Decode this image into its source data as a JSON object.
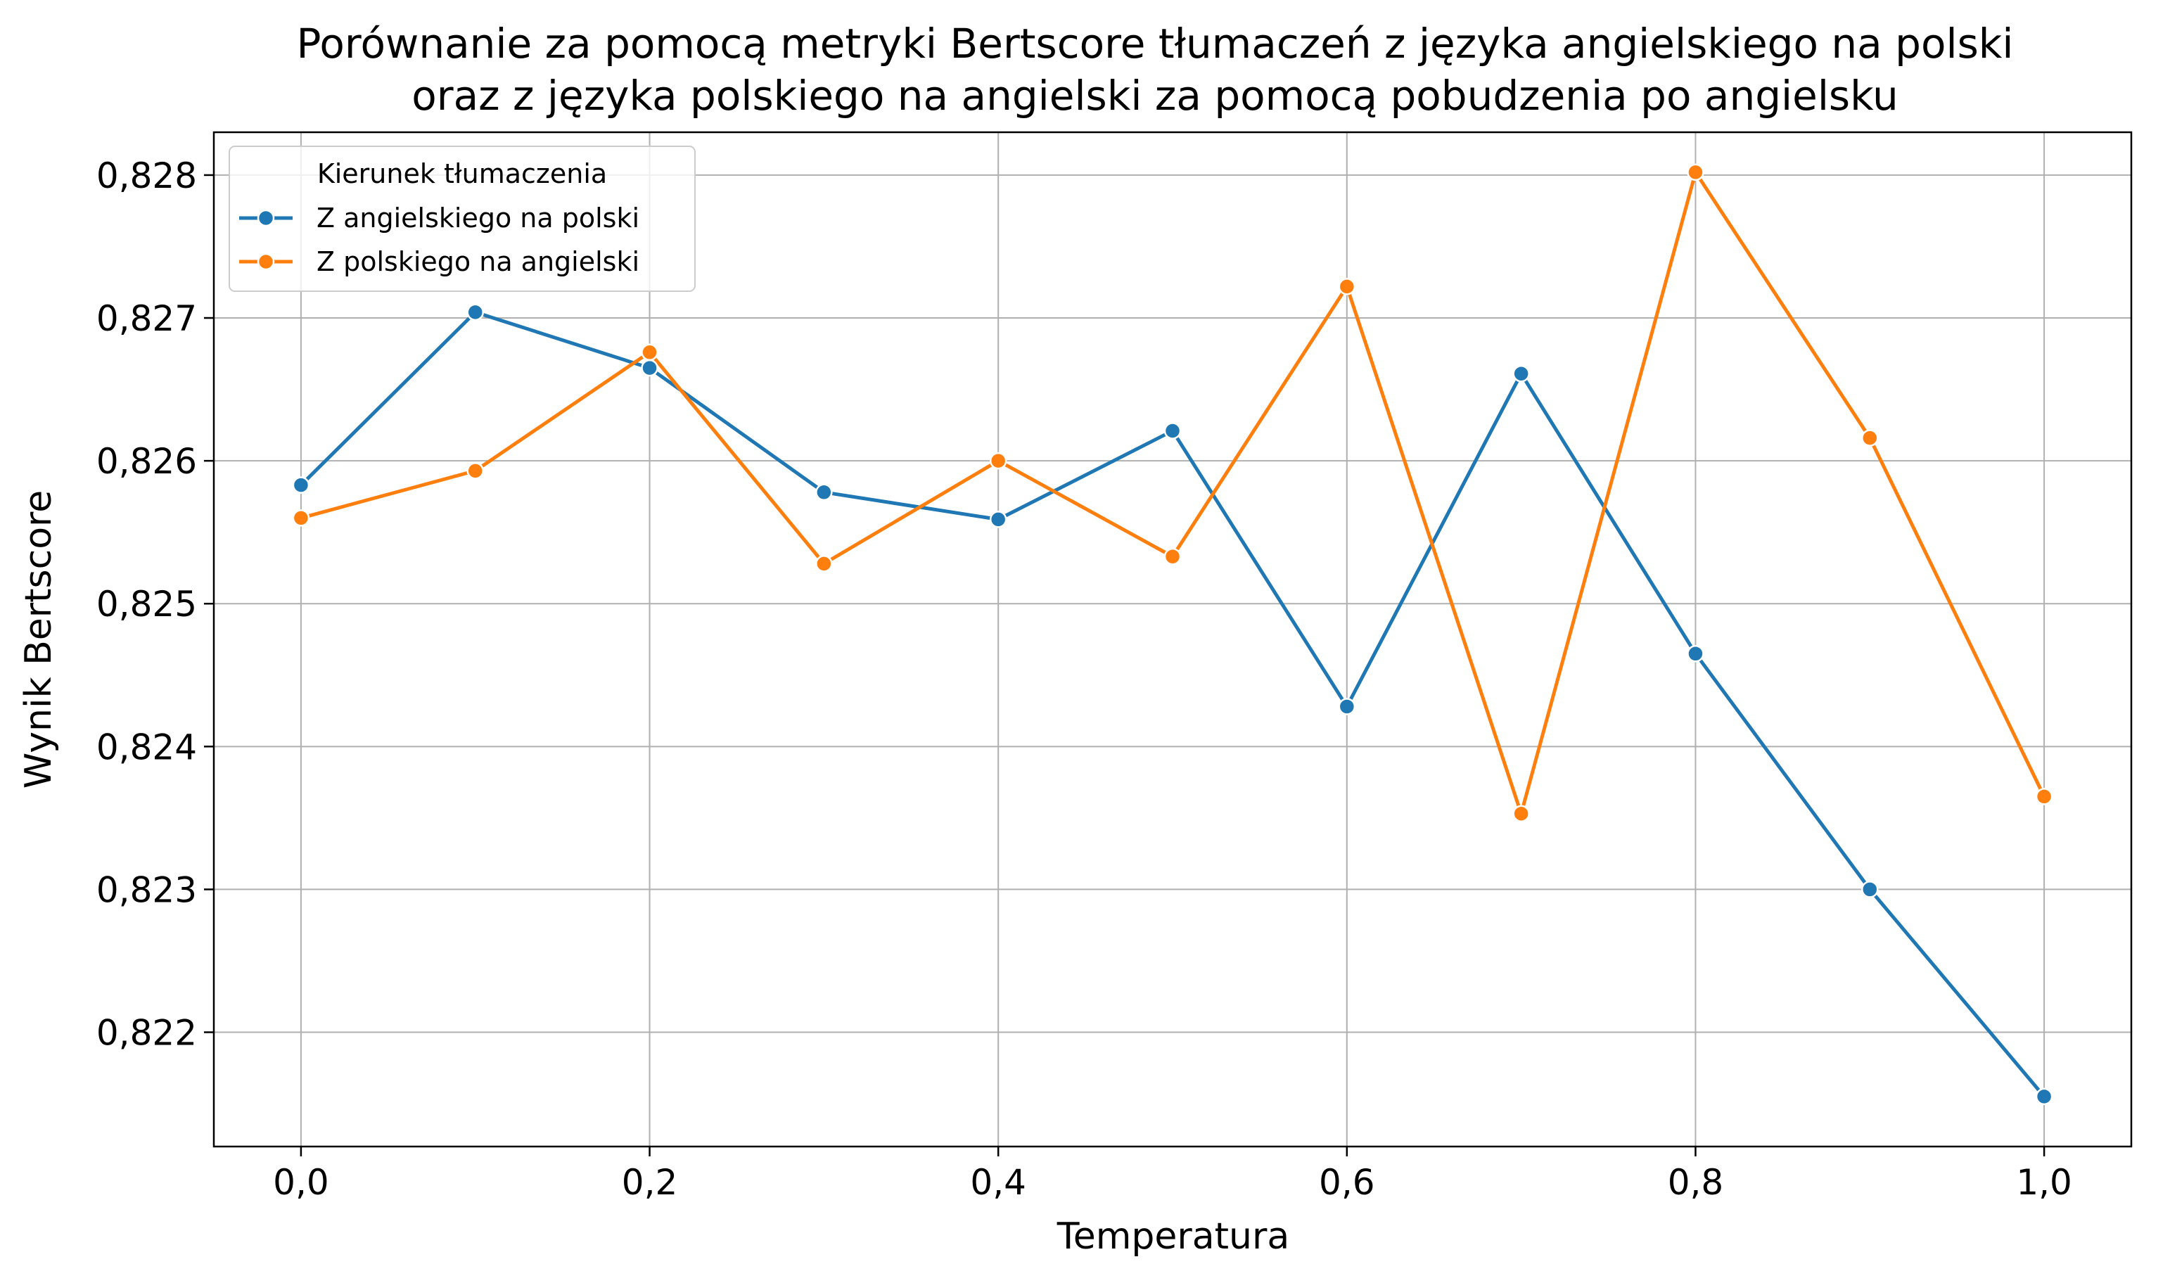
{
  "chart_data": {
    "type": "line",
    "title": [
      "Porównanie za pomocą metryki Bertscore tłumaczeń z języka angielskiego na polski",
      "oraz z języka polskiego na angielski za pomocą pobudzenia po angielsku"
    ],
    "xlabel": "Temperatura",
    "ylabel": "Wynik Bertscore",
    "x": [
      0.0,
      0.1,
      0.2,
      0.3,
      0.4,
      0.5,
      0.6,
      0.7,
      0.8,
      0.9,
      1.0
    ],
    "xlim": [
      -0.05,
      1.05
    ],
    "ylim": [
      0.8212,
      0.8283
    ],
    "x_ticks": [
      0.0,
      0.2,
      0.4,
      0.6,
      0.8,
      1.0
    ],
    "x_tick_labels": [
      "0,0",
      "0,2",
      "0,4",
      "0,6",
      "0,8",
      "1,0"
    ],
    "y_ticks": [
      0.822,
      0.823,
      0.824,
      0.825,
      0.826,
      0.827,
      0.828
    ],
    "y_tick_labels": [
      "0,822",
      "0,823",
      "0,824",
      "0,825",
      "0,826",
      "0,827",
      "0,828"
    ],
    "grid": true,
    "legend": {
      "title": "Kierunek tłumaczenia",
      "placement": "top-left"
    },
    "series": [
      {
        "name": "Z angielskiego na polski",
        "color": "#1f77b4",
        "values": [
          0.82583,
          0.82704,
          0.82665,
          0.82578,
          0.82559,
          0.82621,
          0.82428,
          0.82661,
          0.82465,
          0.823,
          0.82155
        ]
      },
      {
        "name": "Z polskiego na angielski",
        "color": "#ff7f0e",
        "values": [
          0.8256,
          0.82593,
          0.82676,
          0.82528,
          0.826,
          0.82533,
          0.82722,
          0.82353,
          0.82802,
          0.82616,
          0.82365
        ]
      }
    ]
  }
}
